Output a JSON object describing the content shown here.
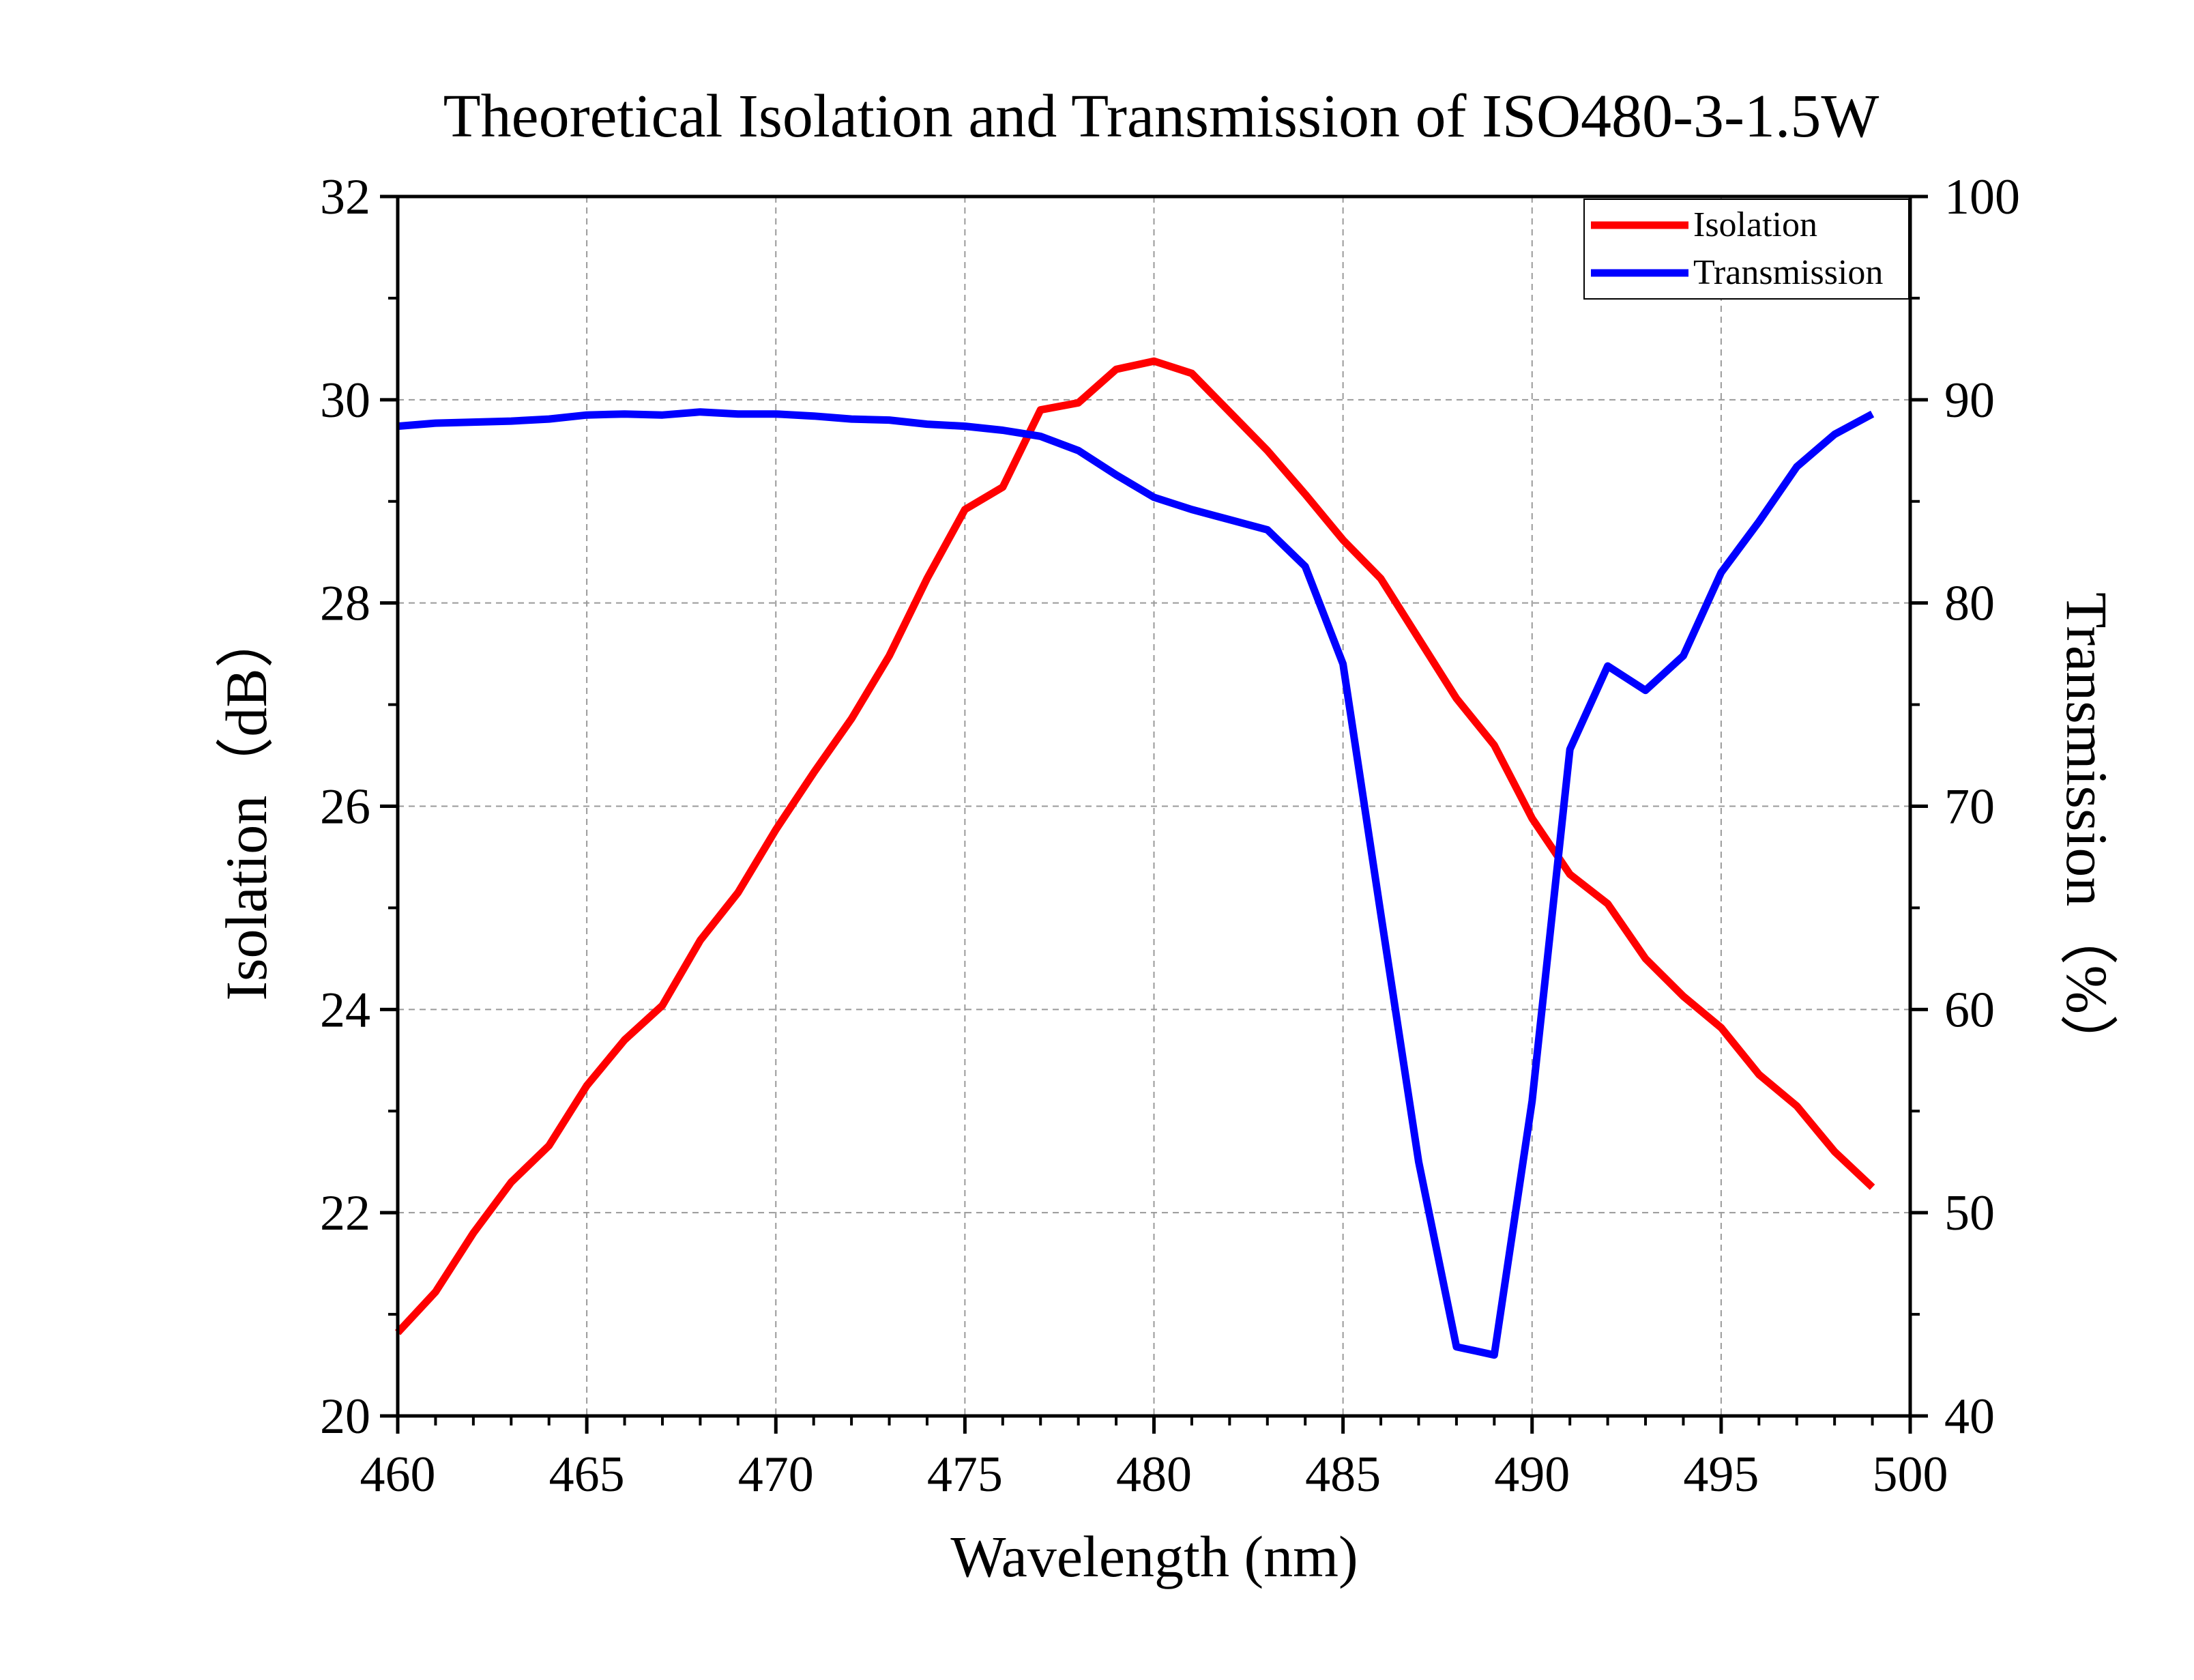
{
  "chart_data": {
    "type": "line",
    "title": "Theoretical Isolation and Transmission of ISO480-3-1.5W",
    "xlabel": "Wavelength (nm)",
    "ylabel_left": "Isolation（dB）",
    "ylabel_right": "Transmission（%）",
    "xlim": [
      460,
      500
    ],
    "ylim_left": [
      20,
      32
    ],
    "ylim_right": [
      40,
      100
    ],
    "x_ticks": [
      "460",
      "465",
      "470",
      "475",
      "480",
      "485",
      "490",
      "495",
      "500"
    ],
    "y_left_ticks": [
      "20",
      "22",
      "24",
      "26",
      "28",
      "30",
      "32"
    ],
    "y_right_ticks": [
      "40",
      "50",
      "60",
      "70",
      "80",
      "90",
      "100"
    ],
    "grid": true,
    "legend_position": "top-right",
    "x": [
      460,
      461,
      462,
      463,
      464,
      465,
      466,
      467,
      468,
      469,
      470,
      471,
      472,
      473,
      474,
      475,
      476,
      477,
      478,
      479,
      480,
      481,
      482,
      483,
      484,
      485,
      486,
      487,
      488,
      489,
      490,
      491,
      492,
      493,
      494,
      495,
      496,
      497,
      498,
      499
    ],
    "series": [
      {
        "name": "Isolation",
        "axis": "left",
        "color": "#ff0000",
        "values": [
          20.82,
          21.22,
          21.8,
          22.3,
          22.66,
          23.25,
          23.7,
          24.04,
          24.68,
          25.15,
          25.77,
          26.33,
          26.86,
          27.48,
          28.24,
          28.92,
          29.14,
          29.9,
          29.97,
          30.3,
          30.38,
          30.26,
          29.88,
          29.5,
          29.07,
          28.62,
          28.24,
          27.65,
          27.06,
          26.6,
          25.88,
          25.33,
          25.04,
          24.5,
          24.13,
          23.82,
          23.36,
          23.05,
          22.6,
          22.25
        ]
      },
      {
        "name": "Transmission",
        "axis": "right",
        "color": "#0000ff",
        "values": [
          88.7,
          88.85,
          88.9,
          88.95,
          89.05,
          89.25,
          89.3,
          89.25,
          89.4,
          89.3,
          89.3,
          89.2,
          89.05,
          89.0,
          88.8,
          88.7,
          88.5,
          88.2,
          87.5,
          86.3,
          85.2,
          84.6,
          84.1,
          83.6,
          81.8,
          77.0,
          64.7,
          52.5,
          43.4,
          43.0,
          55.5,
          72.8,
          76.9,
          75.7,
          77.4,
          81.5,
          84.0,
          86.7,
          88.3,
          89.3
        ]
      }
    ]
  }
}
